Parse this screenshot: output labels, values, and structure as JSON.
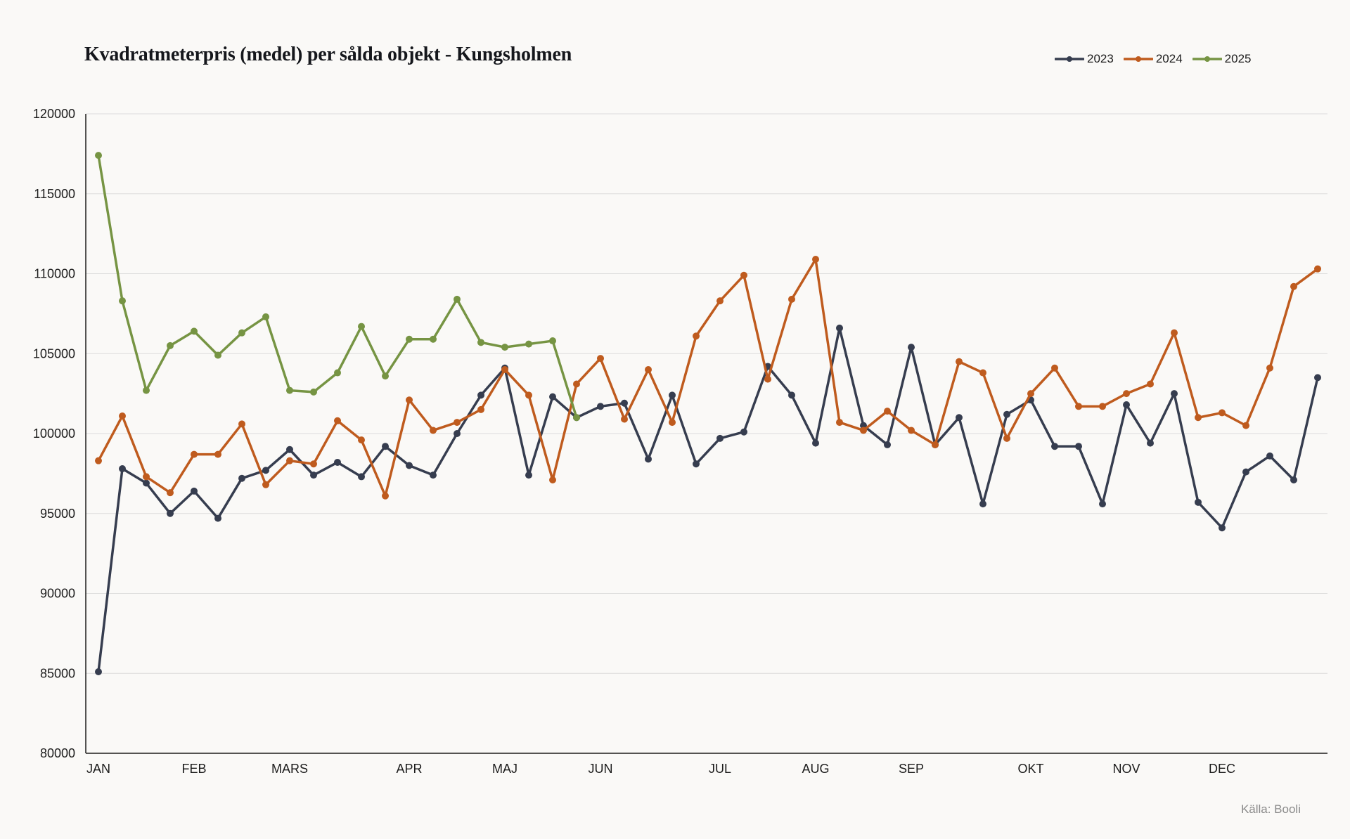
{
  "chart_data": {
    "type": "line",
    "title": "Kvadratmeterpris (medel) per sålda objekt - Kungsholmen",
    "source": "Källa: Booli",
    "ylim": [
      80000,
      120000
    ],
    "yticks": [
      "120000",
      "115000",
      "110000",
      "105000",
      "100000",
      "95000",
      "90000",
      "85000",
      "80000"
    ],
    "x_points": 53,
    "month_labels": [
      {
        "label": "JAN",
        "x": 0
      },
      {
        "label": "FEB",
        "x": 4
      },
      {
        "label": "MARS",
        "x": 8
      },
      {
        "label": "APR",
        "x": 13
      },
      {
        "label": "MAJ",
        "x": 17
      },
      {
        "label": "JUN",
        "x": 21
      },
      {
        "label": "JUL",
        "x": 26
      },
      {
        "label": "AUG",
        "x": 30
      },
      {
        "label": "SEP",
        "x": 34
      },
      {
        "label": "OKT",
        "x": 39
      },
      {
        "label": "NOV",
        "x": 43
      },
      {
        "label": "DEC",
        "x": 47
      }
    ],
    "grid": true,
    "legend_position": "top-right",
    "series": [
      {
        "name": "2023",
        "color": "#363d4f",
        "values": [
          85100,
          97800,
          96900,
          95000,
          96400,
          94700,
          97200,
          97700,
          99000,
          97400,
          98200,
          97300,
          99200,
          98000,
          97400,
          100000,
          102400,
          104100,
          97400,
          102300,
          101000,
          101700,
          101900,
          98400,
          102400,
          98100,
          99700,
          100100,
          104200,
          102400,
          99400,
          106600,
          100500,
          99300,
          105400,
          99300,
          101000,
          95600,
          101200,
          102100,
          99200,
          99200,
          95600,
          101800,
          99400,
          102500,
          95700,
          94100,
          97600,
          98600,
          97100,
          103500
        ]
      },
      {
        "name": "2024",
        "color": "#bf5b1e",
        "values": [
          98300,
          101100,
          97300,
          96300,
          98700,
          98700,
          100600,
          96800,
          98300,
          98100,
          100800,
          99600,
          96100,
          102100,
          100200,
          100700,
          101500,
          104000,
          102400,
          97100,
          103100,
          104700,
          100900,
          104000,
          100700,
          106100,
          108300,
          109900,
          103400,
          108400,
          110900,
          100700,
          100200,
          101400,
          100200,
          99300,
          104500,
          103800,
          99700,
          102500,
          104100,
          101700,
          101700,
          102500,
          103100,
          106300,
          101000,
          101300,
          100500,
          104100,
          109200,
          110300
        ]
      },
      {
        "name": "2025",
        "color": "#769443",
        "values": [
          117400,
          108300,
          102700,
          105500,
          106400,
          104900,
          106300,
          107300,
          102700,
          102600,
          103800,
          106700,
          103600,
          105900,
          105900,
          108400,
          105700,
          105400,
          105600,
          105800,
          101000
        ]
      }
    ]
  }
}
